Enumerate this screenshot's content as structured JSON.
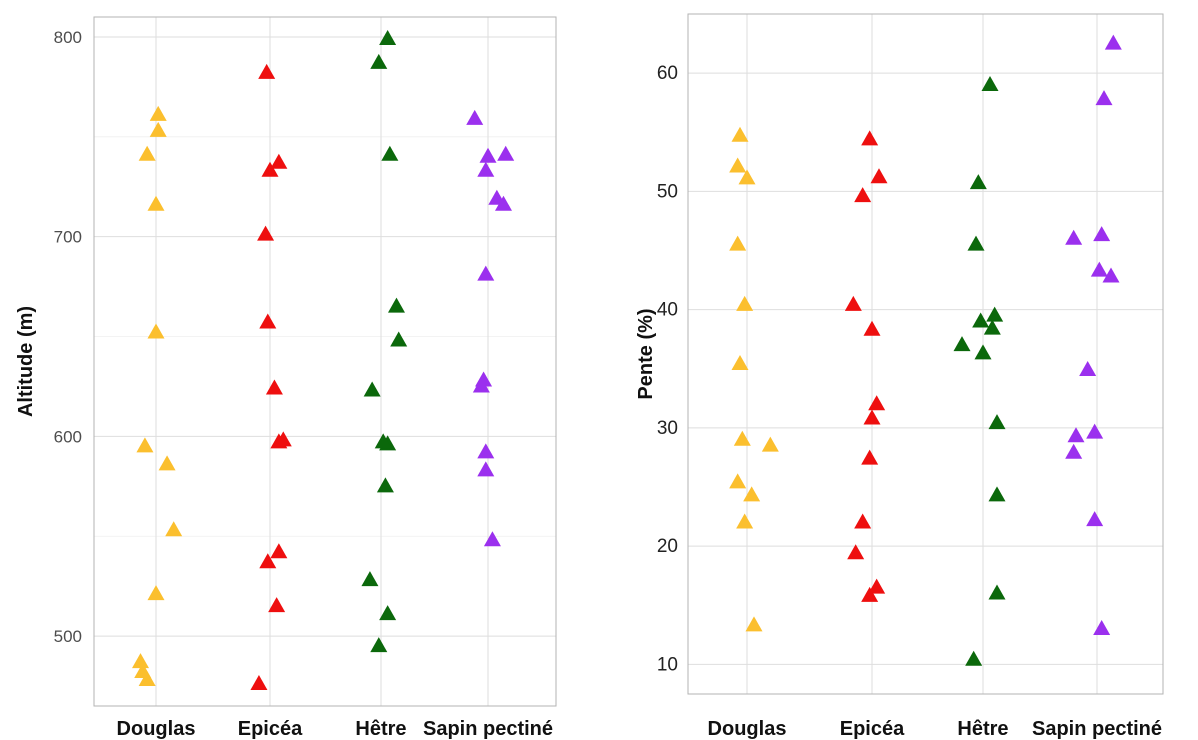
{
  "palette": {
    "Douglas": "#fbbf2e",
    "Epicéa": "#ee0f0f",
    "Hêtre": "#0b680b",
    "Sapin pectiné": "#9b30ee"
  },
  "chart_data": [
    {
      "type": "scatter",
      "title": "",
      "xlabel": "",
      "ylabel": "Altitude (m)",
      "categories": [
        "Douglas",
        "Epicéa",
        "Hêtre",
        "Sapin pectiné"
      ],
      "ylim": [
        465,
        810
      ],
      "yticks": [
        500,
        600,
        700,
        800
      ],
      "ygrid_minor": [
        550,
        650,
        750
      ],
      "grid": true,
      "legend": "none",
      "series": [
        {
          "category": "Douglas",
          "points": [
            {
              "jitter": -0.08,
              "y": 478
            },
            {
              "jitter": -0.12,
              "y": 482
            },
            {
              "jitter": -0.14,
              "y": 487
            },
            {
              "jitter": 0.0,
              "y": 521
            },
            {
              "jitter": 0.16,
              "y": 553
            },
            {
              "jitter": 0.1,
              "y": 586
            },
            {
              "jitter": -0.1,
              "y": 595
            },
            {
              "jitter": 0.0,
              "y": 652
            },
            {
              "jitter": 0.0,
              "y": 716
            },
            {
              "jitter": -0.08,
              "y": 741
            },
            {
              "jitter": 0.02,
              "y": 753
            },
            {
              "jitter": 0.02,
              "y": 761
            }
          ]
        },
        {
          "category": "Epicéa",
          "points": [
            {
              "jitter": -0.1,
              "y": 476
            },
            {
              "jitter": 0.06,
              "y": 515
            },
            {
              "jitter": -0.02,
              "y": 537
            },
            {
              "jitter": 0.08,
              "y": 542
            },
            {
              "jitter": 0.08,
              "y": 597
            },
            {
              "jitter": 0.12,
              "y": 598
            },
            {
              "jitter": 0.04,
              "y": 624
            },
            {
              "jitter": -0.02,
              "y": 657
            },
            {
              "jitter": -0.04,
              "y": 701
            },
            {
              "jitter": 0.0,
              "y": 733
            },
            {
              "jitter": 0.08,
              "y": 737
            },
            {
              "jitter": -0.03,
              "y": 782
            }
          ]
        },
        {
          "category": "Hêtre",
          "points": [
            {
              "jitter": -0.02,
              "y": 495
            },
            {
              "jitter": 0.06,
              "y": 511
            },
            {
              "jitter": -0.1,
              "y": 528
            },
            {
              "jitter": 0.04,
              "y": 575
            },
            {
              "jitter": 0.06,
              "y": 596
            },
            {
              "jitter": 0.02,
              "y": 597
            },
            {
              "jitter": -0.08,
              "y": 623
            },
            {
              "jitter": 0.16,
              "y": 648
            },
            {
              "jitter": 0.14,
              "y": 665
            },
            {
              "jitter": 0.08,
              "y": 741
            },
            {
              "jitter": -0.02,
              "y": 787
            },
            {
              "jitter": 0.06,
              "y": 799
            }
          ]
        },
        {
          "category": "Sapin pectiné",
          "points": [
            {
              "jitter": 0.04,
              "y": 548
            },
            {
              "jitter": -0.02,
              "y": 583
            },
            {
              "jitter": -0.02,
              "y": 592
            },
            {
              "jitter": -0.06,
              "y": 625
            },
            {
              "jitter": -0.04,
              "y": 628
            },
            {
              "jitter": -0.02,
              "y": 681
            },
            {
              "jitter": 0.14,
              "y": 716
            },
            {
              "jitter": 0.08,
              "y": 719
            },
            {
              "jitter": -0.02,
              "y": 733
            },
            {
              "jitter": 0.0,
              "y": 740
            },
            {
              "jitter": 0.16,
              "y": 741
            },
            {
              "jitter": -0.12,
              "y": 759
            }
          ]
        }
      ]
    },
    {
      "type": "scatter",
      "title": "",
      "xlabel": "",
      "ylabel": "Pente (%)",
      "categories": [
        "Douglas",
        "Epicéa",
        "Hêtre",
        "Sapin pectiné"
      ],
      "ylim": [
        7.5,
        65
      ],
      "yticks": [
        10,
        20,
        30,
        40,
        50,
        60
      ],
      "ygrid_minor": [],
      "grid": true,
      "legend": "none",
      "series": [
        {
          "category": "Douglas",
          "points": [
            {
              "jitter": 0.06,
              "y": 13.3
            },
            {
              "jitter": -0.02,
              "y": 22
            },
            {
              "jitter": 0.04,
              "y": 24.3
            },
            {
              "jitter": -0.08,
              "y": 25.4
            },
            {
              "jitter": 0.2,
              "y": 28.5
            },
            {
              "jitter": -0.04,
              "y": 29
            },
            {
              "jitter": -0.06,
              "y": 35.4
            },
            {
              "jitter": -0.02,
              "y": 40.4
            },
            {
              "jitter": -0.08,
              "y": 45.5
            },
            {
              "jitter": 0.0,
              "y": 51.1
            },
            {
              "jitter": -0.08,
              "y": 52.1
            },
            {
              "jitter": -0.06,
              "y": 54.7
            }
          ]
        },
        {
          "category": "Epicéa",
          "points": [
            {
              "jitter": -0.02,
              "y": 15.8
            },
            {
              "jitter": 0.04,
              "y": 16.5
            },
            {
              "jitter": -0.14,
              "y": 19.4
            },
            {
              "jitter": -0.08,
              "y": 22
            },
            {
              "jitter": -0.02,
              "y": 27.4
            },
            {
              "jitter": 0.0,
              "y": 30.8
            },
            {
              "jitter": 0.04,
              "y": 32
            },
            {
              "jitter": 0.0,
              "y": 38.3
            },
            {
              "jitter": -0.16,
              "y": 40.4
            },
            {
              "jitter": -0.08,
              "y": 49.6
            },
            {
              "jitter": 0.06,
              "y": 51.2
            },
            {
              "jitter": -0.02,
              "y": 54.4
            }
          ]
        },
        {
          "category": "Hêtre",
          "points": [
            {
              "jitter": -0.08,
              "y": 10.4
            },
            {
              "jitter": 0.12,
              "y": 16
            },
            {
              "jitter": 0.12,
              "y": 24.3
            },
            {
              "jitter": 0.12,
              "y": 30.4
            },
            {
              "jitter": 0.0,
              "y": 36.3
            },
            {
              "jitter": -0.18,
              "y": 37
            },
            {
              "jitter": 0.08,
              "y": 38.4
            },
            {
              "jitter": -0.02,
              "y": 39
            },
            {
              "jitter": 0.1,
              "y": 39.5
            },
            {
              "jitter": -0.06,
              "y": 45.5
            },
            {
              "jitter": -0.04,
              "y": 50.7
            },
            {
              "jitter": 0.06,
              "y": 59
            }
          ]
        },
        {
          "category": "Sapin pectiné",
          "points": [
            {
              "jitter": 0.04,
              "y": 13
            },
            {
              "jitter": -0.02,
              "y": 22.2
            },
            {
              "jitter": -0.2,
              "y": 27.9
            },
            {
              "jitter": -0.18,
              "y": 29.3
            },
            {
              "jitter": -0.02,
              "y": 29.6
            },
            {
              "jitter": -0.08,
              "y": 34.9
            },
            {
              "jitter": 0.12,
              "y": 42.8
            },
            {
              "jitter": 0.02,
              "y": 43.3
            },
            {
              "jitter": -0.2,
              "y": 46
            },
            {
              "jitter": 0.04,
              "y": 46.3
            },
            {
              "jitter": 0.06,
              "y": 57.8
            },
            {
              "jitter": 0.14,
              "y": 62.5
            }
          ]
        }
      ]
    }
  ]
}
